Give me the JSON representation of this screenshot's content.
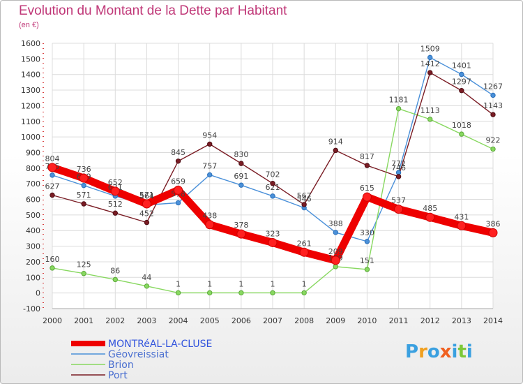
{
  "title": "Evolution du Montant de la Dette par Habitant",
  "subtitle": "(en €)",
  "brand": "Proxiti",
  "chart_data": {
    "type": "line",
    "x": [
      "2000",
      "2001",
      "2002",
      "2003",
      "2004",
      "2005",
      "2006",
      "2007",
      "2008",
      "2009",
      "2010",
      "2011",
      "2012",
      "2013",
      "2014"
    ],
    "ylim": [
      -100,
      1600
    ],
    "yticks": [
      -100,
      0,
      100,
      200,
      300,
      400,
      500,
      600,
      700,
      800,
      900,
      1000,
      1100,
      1200,
      1300,
      1400,
      1500,
      1600
    ],
    "grid": true,
    "legend_position": "bottom-left",
    "series": [
      {
        "name": "Géovreissiat",
        "color": "#4a90d9",
        "values": [
          755,
          689,
          621,
          564,
          578,
          757,
          691,
          621,
          546,
          388,
          330,
          772,
          1509,
          1401,
          1267
        ]
      },
      {
        "name": "Brion",
        "color": "#88d860",
        "values": [
          160,
          125,
          86,
          44,
          1,
          1,
          1,
          1,
          1,
          169,
          151,
          1181,
          1113,
          1018,
          922
        ]
      },
      {
        "name": "Port",
        "color": "#7a1c24",
        "values": [
          627,
          571,
          512,
          452,
          845,
          954,
          830,
          702,
          567,
          914,
          817,
          746,
          1412,
          1297,
          1143
        ]
      },
      {
        "name": "MONTRéAL-LA-CLUSE",
        "color": "#ee0000",
        "values": [
          804,
          736,
          652,
          571,
          659,
          438,
          378,
          323,
          261,
          209,
          615,
          537,
          485,
          431,
          386
        ]
      }
    ]
  }
}
